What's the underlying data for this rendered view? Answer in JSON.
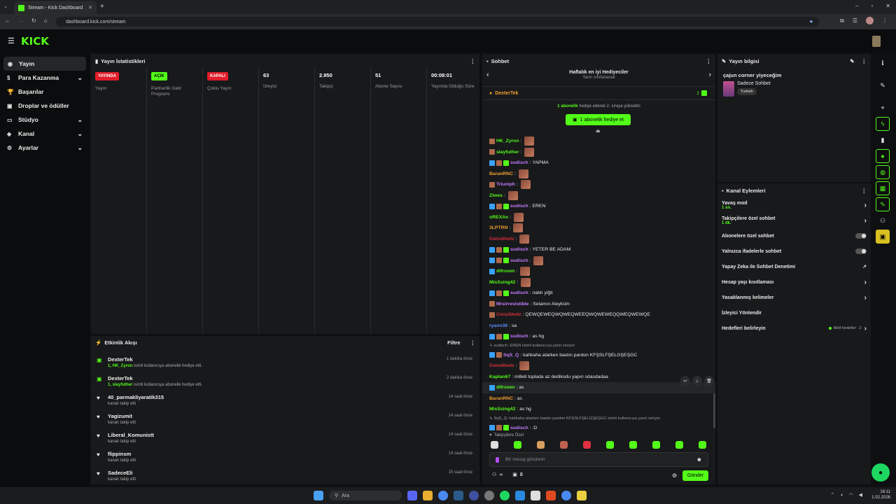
{
  "browser": {
    "tab_title": "Stream - Kick Dashboard",
    "url": "dashboard.kick.com/stream"
  },
  "header": {
    "logo": "KICK"
  },
  "sidebar": {
    "items": [
      {
        "label": "Yayın",
        "icon": "broadcast-icon",
        "chevron": false
      },
      {
        "label": "Para Kazanma",
        "icon": "money-icon",
        "chevron": true
      },
      {
        "label": "Başarılar",
        "icon": "trophy-icon",
        "chevron": false
      },
      {
        "label": "Droplar ve ödüller",
        "icon": "gift-icon",
        "chevron": false
      },
      {
        "label": "Stüdyo",
        "icon": "studio-icon",
        "chevron": true
      },
      {
        "label": "Kanal",
        "icon": "channel-icon",
        "chevron": true
      },
      {
        "label": "Ayarlar",
        "icon": "gear-icon",
        "chevron": true
      }
    ]
  },
  "stats": {
    "title": "Yayın İstatistikleri",
    "columns": [
      {
        "badge": "YAYINDA",
        "badge_color": "#e11d2a",
        "value": "",
        "label": "Yayın"
      },
      {
        "badge": "AÇIK",
        "badge_color": "#53fc18",
        "value": "",
        "label": "Partnerlik Gelir Programı"
      },
      {
        "badge": "KAPALI",
        "badge_color": "#e11d2a",
        "value": "",
        "label": "Çoklu Yayın"
      },
      {
        "badge": "",
        "value": "63",
        "label": "İzleyici"
      },
      {
        "badge": "",
        "value": "2.950",
        "label": "Takipçi"
      },
      {
        "badge": "",
        "value": "51",
        "label": "Abone Sayısı"
      },
      {
        "badge": "",
        "value": "00:08:01",
        "label": "Yayında Olduğu Süre"
      }
    ]
  },
  "activity": {
    "title": "Etkinlik Akışı",
    "filter_label": "Filtre",
    "events": [
      {
        "icon": "gift-icon",
        "name": "DexterTek",
        "sub_highlight": "1, HK_Zyron",
        "sub": " isimli kullanıcıya abonelik hediye etti.",
        "time": "1 dakika önce"
      },
      {
        "icon": "gift-icon",
        "name": "DexterTek",
        "sub_highlight": "1, slayfuther",
        "sub": " isimli kullanıcıya abonelik hediye etti.",
        "time": "2 dakika önce"
      },
      {
        "icon": "heart-icon",
        "name": "40_parmakliyaratik315",
        "sub_highlight": "",
        "sub": "kanalı takip etti",
        "time": "14 saat önce"
      },
      {
        "icon": "heart-icon",
        "name": "Yagizumit",
        "sub_highlight": "",
        "sub": "kanalı takip etti",
        "time": "14 saat önce"
      },
      {
        "icon": "heart-icon",
        "name": "Liberal_Komunistt",
        "sub_highlight": "",
        "sub": "kanalı takip etti",
        "time": "14 saat önce"
      },
      {
        "icon": "heart-icon",
        "name": "flippinsm",
        "sub_highlight": "",
        "sub": "kanalı takip etti",
        "time": "14 saat önce"
      },
      {
        "icon": "heart-icon",
        "name": "SadeceEli",
        "sub_highlight": "",
        "sub": "kanalı takip etti",
        "time": "15 saat önce"
      }
    ]
  },
  "chat": {
    "title": "Sohbet",
    "leaderboard_title": "Haftalık en iyi Hediyeciler",
    "leaderboard_sub": "Yarın sıfırlanacak",
    "top_gifter": "DexterTek",
    "top_gifter_count": "2",
    "gift_note_count": "1 abonelik",
    "gift_note": " hediye ederek 2. sıraya yükseltin",
    "gift_button": "1 abonelik hediye et",
    "messages": [
      {
        "user": "HK_Zyron",
        "color": "#53fc18",
        "text": "",
        "emote": true,
        "badges": [
          "#ad6a4a"
        ]
      },
      {
        "user": "slayfuther",
        "color": "#53fc18",
        "text": "",
        "emote": true,
        "badges": [
          "#ad6a4a"
        ]
      },
      {
        "user": "sudisch",
        "color": "#c47cff",
        "text": "YAPMA",
        "emote": false,
        "badges": [
          "#3aa2ff",
          "#ad6a4a",
          "#53fc18"
        ]
      },
      {
        "user": "BaranRNC",
        "color": "#f0a030",
        "text": "",
        "emote": true,
        "badges": []
      },
      {
        "user": "Trîumph",
        "color": "#c47cff",
        "text": "",
        "emote": true,
        "badges": [
          "#ad6a4a"
        ]
      },
      {
        "user": "Ziwes",
        "color": "#53fc18",
        "text": "",
        "emote": true,
        "badges": []
      },
      {
        "user": "sudisch",
        "color": "#c47cff",
        "text": "EREN",
        "emote": false,
        "badges": [
          "#3aa2ff",
          "#ad6a4a",
          "#53fc18"
        ]
      },
      {
        "user": "oREXAo",
        "color": "#53fc18",
        "text": "",
        "emote": true,
        "badges": []
      },
      {
        "user": "3LPTRN",
        "color": "#f0a030",
        "text": "",
        "emote": true,
        "badges": []
      },
      {
        "user": "ConsShotz",
        "color": "#e03040",
        "text": "",
        "emote": true,
        "badges": []
      },
      {
        "user": "sudisch",
        "color": "#c47cff",
        "text": "YETER BE ADAM",
        "emote": false,
        "badges": [
          "#3aa2ff",
          "#ad6a4a",
          "#53fc18"
        ]
      },
      {
        "user": "sudisch",
        "color": "#c47cff",
        "text": "",
        "emote": true,
        "badges": [
          "#3aa2ff",
          "#ad6a4a",
          "#53fc18"
        ]
      },
      {
        "user": "difrozen",
        "color": "#53fc18",
        "text": "",
        "emote": true,
        "badges": [
          "#3aa2ff"
        ]
      },
      {
        "user": "MisSsing42",
        "color": "#53fc18",
        "text": "",
        "emote": true,
        "badges": []
      },
      {
        "user": "sudisch",
        "color": "#c47cff",
        "text": "nabtı yiğit",
        "emote": false,
        "badges": [
          "#3aa2ff",
          "#ad6a4a",
          "#53fc18"
        ]
      },
      {
        "user": "Mrsirresistible",
        "color": "#c47cff",
        "text": "Selamın Aleyküm",
        "emote": false,
        "badges": [
          "#ad6a4a"
        ]
      },
      {
        "user": "ConsShotz",
        "color": "#e03040",
        "text": "QEWQEWEQWQWEQWEEQWQWEWEQQWEQWEWQE",
        "emote": false,
        "badges": [
          "#ad6a4a"
        ]
      },
      {
        "user": "ryann36",
        "color": "#5a8cff",
        "text": "sa",
        "emote": false,
        "badges": []
      },
      {
        "user": "sudisch",
        "color": "#c47cff",
        "text": "as hg",
        "emote": false,
        "badges": [
          "#3aa2ff",
          "#ad6a4a",
          "#53fc18"
        ]
      },
      {
        "user": "",
        "color": "#9b9b9b",
        "text": "↳ sudisch: EREN isimli kullanıcıya yanıt veriyor",
        "emote": false,
        "badges": [],
        "reply": true
      },
      {
        "user": "SqS_Q",
        "color": "#c47cff",
        "text": "kahkaha atarken bastın pardon KFŞSLFŞELGŞEŞGC",
        "emote": false,
        "badges": [
          "#3aa2ff",
          "#ad6a4a"
        ]
      },
      {
        "user": "ConsShotz",
        "color": "#e03040",
        "text": "",
        "emote": true,
        "badges": []
      },
      {
        "user": "Kaplan67",
        "color": "#53fc18",
        "text": "milleti toplada az dedikodu yapın sdasdadaa",
        "emote": false,
        "badges": []
      },
      {
        "user": "difrozen",
        "color": "#53fc18",
        "text": "as",
        "emote": false,
        "badges": [
          "#3aa2ff"
        ],
        "hover": true
      },
      {
        "user": "BaranRNC",
        "color": "#f0a030",
        "text": "as",
        "emote": false,
        "badges": []
      },
      {
        "user": "MisSsing42",
        "color": "#53fc18",
        "text": "as hg",
        "emote": false,
        "badges": []
      },
      {
        "user": "",
        "color": "#9b9b9b",
        "text": "↳ SqS_Q: kahkaha atarken bastın pardon KFŞSLFŞELGŞEŞGC isimli kullanıcıya yanıt veriyor",
        "emote": false,
        "badges": [],
        "reply": true
      },
      {
        "user": "sudisch",
        "color": "#c47cff",
        "text": ":D",
        "emote": false,
        "badges": [
          "#3aa2ff",
          "#ad6a4a",
          "#53fc18"
        ]
      }
    ],
    "followers_only_label": "Takipçilere Özel",
    "input_placeholder": "Bir mesaj gönderin",
    "points_label": "∞",
    "gift_count": "0",
    "send_label": "Gönder"
  },
  "stream_info": {
    "title": "Yayın bilgisi",
    "stream_title": "çajun corner yiyeceğim",
    "category": "Sadece Sohbet",
    "tag": "Turkish"
  },
  "channel_actions": {
    "title": "Kanal Eylemleri",
    "rows": [
      {
        "label": "Yavaş mod",
        "sub": "1 sn.",
        "control": "chevron"
      },
      {
        "label": "Takipçilere özel sohbet",
        "sub": "1 dk.",
        "control": "chevron"
      },
      {
        "label": "Abonelere özel sohbet",
        "sub": "",
        "control": "toggle"
      },
      {
        "label": "Yalnızca ifadelerle sohbet",
        "sub": "",
        "control": "toggle"
      },
      {
        "label": "Yapay Zeka ile Sohbet Denetimi",
        "sub": "",
        "control": "external"
      },
      {
        "label": "Hesap yaşı kısıtlaması",
        "sub": "",
        "control": "chevron"
      },
      {
        "label": "Yasaklanmış kelimeler",
        "sub": "",
        "control": "chevron"
      },
      {
        "label": "İzleyici Yönlendir",
        "sub": "",
        "control": "none"
      },
      {
        "label": "Hedefleri belirleyin",
        "sub": "",
        "control": "chevron",
        "status": "Aktif hedefler - 2"
      }
    ]
  },
  "taskbar": {
    "search_label": "Ara",
    "time": "16:11",
    "date": "1.02.2026"
  }
}
